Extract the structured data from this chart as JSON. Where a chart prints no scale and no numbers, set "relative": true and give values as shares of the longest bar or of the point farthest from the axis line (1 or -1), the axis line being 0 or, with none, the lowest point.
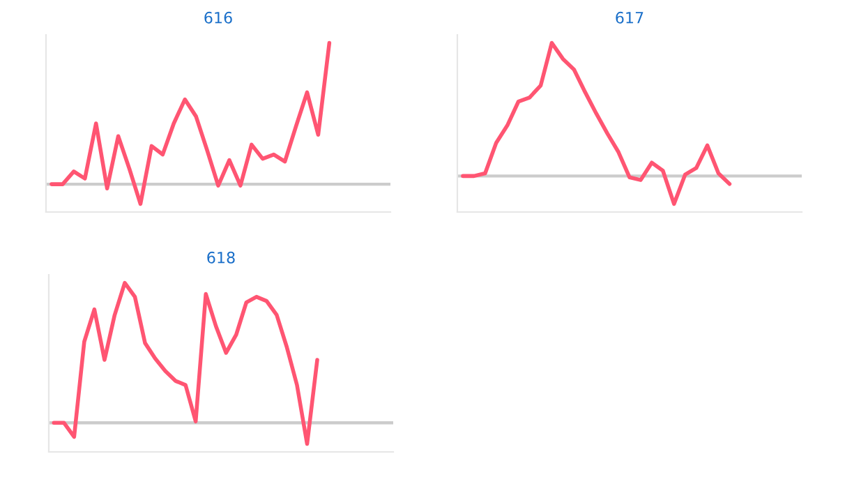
{
  "chart_data": [
    {
      "type": "line",
      "title": "616",
      "relative": true,
      "color": "#ff5572",
      "categories": [
        null,
        null,
        null,
        null,
        null,
        null,
        null,
        null,
        null,
        null,
        null,
        null,
        null,
        null,
        null,
        null,
        null,
        null,
        null,
        null,
        null,
        null,
        null,
        null,
        null,
        null,
        null,
        null,
        null,
        null,
        null
      ],
      "values": [
        0,
        0,
        0.09,
        0.04,
        0.43,
        -0.03,
        0.34,
        0.11,
        -0.14,
        0.27,
        0.21,
        0.43,
        0.6,
        0.48,
        0.24,
        -0.01,
        0.17,
        -0.01,
        0.28,
        0.18,
        0.21,
        0.16,
        0.41,
        0.65,
        0.35,
        1,
        null,
        null,
        null,
        null,
        null
      ]
    },
    {
      "type": "line",
      "title": "617",
      "relative": true,
      "color": "#ff5572",
      "categories": [
        null,
        null,
        null,
        null,
        null,
        null,
        null,
        null,
        null,
        null,
        null,
        null,
        null,
        null,
        null,
        null,
        null,
        null,
        null,
        null,
        null,
        null,
        null,
        null,
        null,
        null,
        null,
        null,
        null,
        null,
        null
      ],
      "values": [
        0,
        0,
        0.02,
        0.25,
        0.38,
        0.56,
        0.59,
        0.68,
        1,
        0.88,
        0.8,
        0.63,
        0.47,
        0.32,
        0.18,
        -0.01,
        -0.03,
        0.1,
        0.04,
        -0.21,
        0.01,
        0.06,
        0.23,
        0.02,
        -0.06,
        null,
        null,
        null,
        null,
        null,
        null
      ]
    },
    {
      "type": "line",
      "title": "618",
      "relative": true,
      "color": "#ff5572",
      "categories": [
        null,
        null,
        null,
        null,
        null,
        null,
        null,
        null,
        null,
        null,
        null,
        null,
        null,
        null,
        null,
        null,
        null,
        null,
        null,
        null,
        null,
        null,
        null,
        null,
        null,
        null,
        null,
        null,
        null,
        null,
        null,
        null,
        null,
        null
      ],
      "values": [
        0,
        0,
        -0.1,
        0.58,
        0.81,
        0.45,
        0.77,
        1,
        0.9,
        0.57,
        0.46,
        0.37,
        0.3,
        0.27,
        0.01,
        0.92,
        0.69,
        0.5,
        0.63,
        0.86,
        0.9,
        0.87,
        0.77,
        0.54,
        0.27,
        -0.15,
        0.45,
        null,
        null,
        null,
        null,
        null,
        null,
        null
      ]
    }
  ]
}
